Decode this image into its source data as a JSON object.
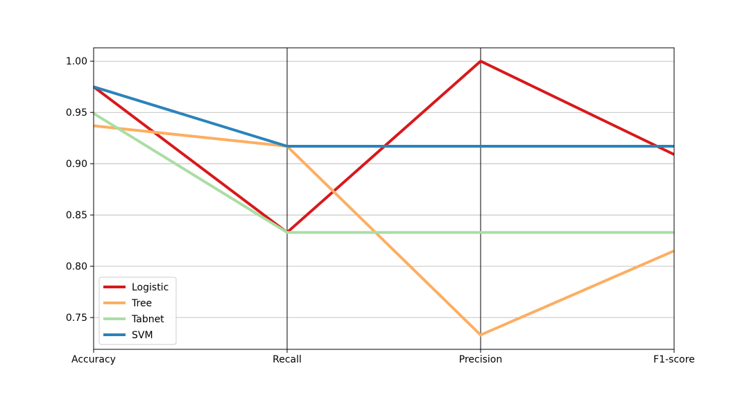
{
  "chart_data": {
    "type": "line",
    "subtype": "parallel-coordinates",
    "categories": [
      "Accuracy",
      "Recall",
      "Precision",
      "F1-score"
    ],
    "ylim": [
      0.719,
      1.013
    ],
    "yticks": [
      0.75,
      0.8,
      0.85,
      0.9,
      0.95,
      1.0
    ],
    "ytick_labels": [
      "0.75",
      "0.80",
      "0.85",
      "0.90",
      "0.95",
      "1.00"
    ],
    "grid": "horizontal",
    "legend_position": "lower-left",
    "series": [
      {
        "name": "Logistic",
        "values": [
          0.975,
          0.833,
          1.0,
          0.909
        ],
        "color": "#d7191c"
      },
      {
        "name": "Tree",
        "values": [
          0.937,
          0.917,
          0.733,
          0.815
        ],
        "color": "#fdae61"
      },
      {
        "name": "Tabnet",
        "values": [
          0.949,
          0.833,
          0.833,
          0.833
        ],
        "color": "#abdda4"
      },
      {
        "name": "SVM",
        "values": [
          0.975,
          0.917,
          0.917,
          0.917
        ],
        "color": "#2b83ba"
      }
    ]
  }
}
